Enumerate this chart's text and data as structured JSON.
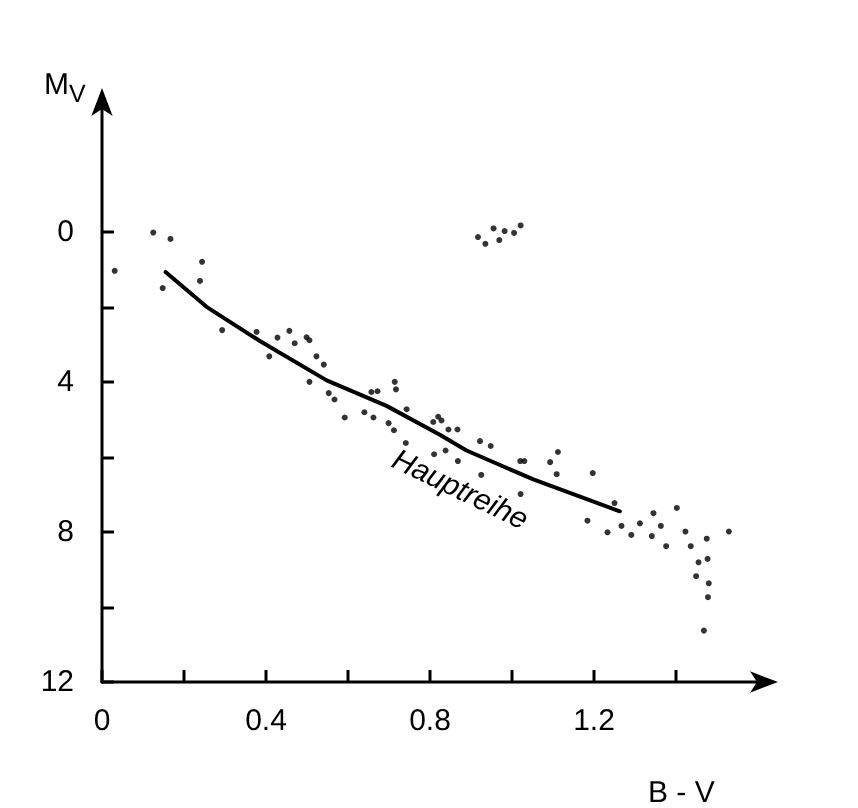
{
  "chart_data": {
    "type": "scatter",
    "xlabel": "B - V",
    "ylabel": "M$_{V}$",
    "xlim": [
      0,
      1.6
    ],
    "ylim": [
      12,
      -3.3
    ],
    "xticks": [
      0,
      {
        "value": 0.2,
        "label": null
      },
      0.4,
      {
        "value": 0.6,
        "label": null
      },
      0.8,
      {
        "value": 1.0,
        "label": null
      },
      1.2,
      {
        "value": 1.4,
        "label": null
      }
    ],
    "yticks": [
      0,
      {
        "value": 2,
        "label": null
      },
      4,
      {
        "value": 6,
        "label": null
      },
      8,
      {
        "value": 10,
        "label": null
      },
      12
    ],
    "marker": "circle",
    "grid": false,
    "annotations": [
      "Hauptreihe"
    ],
    "series": [
      {
        "color": "#000000",
        "x": [
          0.125,
          0.167,
          0.031,
          0.244,
          0.239,
          0.148,
          0.293,
          0.377,
          0.428,
          0.457,
          0.47,
          0.499,
          0.506,
          0.408,
          0.523,
          0.541,
          0.506,
          0.553,
          0.567,
          0.592,
          0.657,
          0.672,
          0.714,
          0.717,
          0.64,
          0.662,
          0.743,
          0.699,
          0.712,
          0.741,
          0.808,
          0.81,
          0.917,
          0.935,
          0.955,
          0.969,
          0.982,
          1.005,
          1.021,
          0.82,
          0.828,
          0.845,
          0.867,
          0.838,
          0.868,
          0.922,
          0.948,
          0.925,
          1.02,
          1.03,
          1.093,
          1.112,
          1.109,
          1.197,
          1.021,
          1.25,
          1.184,
          1.233,
          1.267,
          1.291,
          1.312,
          1.345,
          1.363,
          1.341,
          1.376,
          1.402,
          1.423,
          1.436,
          1.475,
          1.529,
          1.455,
          1.477,
          1.449,
          1.48,
          1.478,
          1.468
        ],
        "values": [
          0.02,
          0.19,
          1.04,
          0.8,
          1.31,
          1.5,
          2.62,
          2.67,
          2.82,
          2.64,
          2.97,
          2.81,
          2.89,
          3.32,
          3.32,
          3.54,
          4.0,
          4.3,
          4.47,
          4.95,
          4.27,
          4.25,
          4.0,
          4.2,
          4.81,
          4.95,
          4.73,
          5.1,
          5.29,
          5.63,
          5.07,
          5.93,
          0.14,
          0.32,
          -0.09,
          0.22,
          -0.02,
          0.03,
          -0.17,
          4.93,
          5.03,
          5.27,
          5.27,
          5.83,
          6.11,
          5.58,
          5.71,
          6.48,
          6.11,
          6.11,
          6.14,
          5.87,
          6.46,
          6.43,
          6.99,
          7.23,
          7.7,
          8.01,
          7.84,
          8.08,
          7.77,
          7.5,
          7.84,
          8.11,
          8.38,
          7.36,
          7.99,
          8.38,
          8.18,
          7.99,
          8.81,
          8.72,
          9.18,
          9.37,
          9.74,
          10.63
        ]
      },
      {
        "type": "line",
        "color": "#000000",
        "marker": "none",
        "line_style": "solid",
        "x": [
          0.155,
          0.255,
          0.385,
          0.548,
          0.694,
          0.824,
          0.889,
          1.052,
          1.263
        ],
        "values": [
          1.07,
          2.0,
          2.91,
          3.96,
          4.64,
          5.41,
          5.83,
          6.6,
          7.45
        ]
      }
    ]
  }
}
